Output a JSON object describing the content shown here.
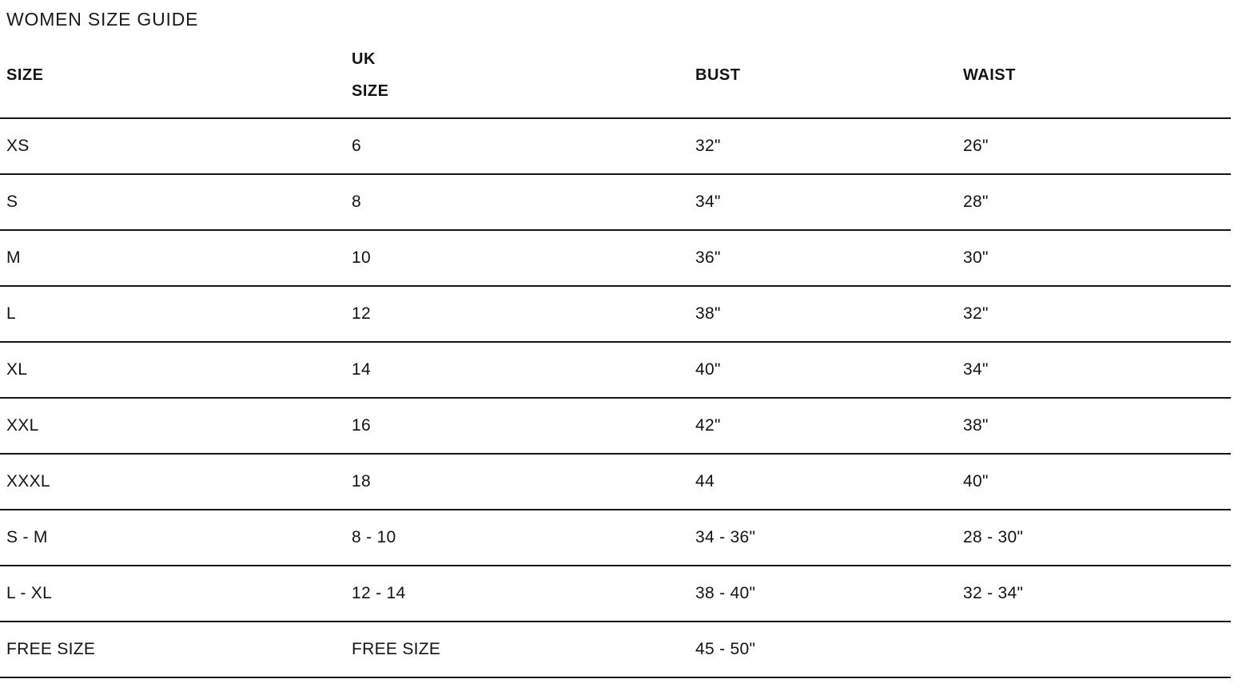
{
  "page": {
    "title": "WOMEN SIZE GUIDE"
  },
  "table": {
    "columns": [
      {
        "key": "size",
        "label": "SIZE"
      },
      {
        "key": "uk_size",
        "label": "UK SIZE"
      },
      {
        "key": "bust",
        "label": "BUST"
      },
      {
        "key": "waist",
        "label": "WAIST"
      }
    ],
    "rows": [
      {
        "size": "XS",
        "uk_size": "6",
        "bust": "32\"",
        "waist": "26\""
      },
      {
        "size": "S",
        "uk_size": "8",
        "bust": "34\"",
        "waist": "28\""
      },
      {
        "size": "M",
        "uk_size": "10",
        "bust": "36\"",
        "waist": "30\""
      },
      {
        "size": "L",
        "uk_size": "12",
        "bust": "38\"",
        "waist": "32\""
      },
      {
        "size": "XL",
        "uk_size": "14",
        "bust": "40\"",
        "waist": "34\""
      },
      {
        "size": "XXL",
        "uk_size": "16",
        "bust": "42\"",
        "waist": "38\""
      },
      {
        "size": "XXXL",
        "uk_size": "18",
        "bust": "44",
        "waist": "40\""
      },
      {
        "size": "S - M",
        "uk_size": "8 - 10",
        "bust": "34 - 36\"",
        "waist": "28 - 30\""
      },
      {
        "size": "L - XL",
        "uk_size": "12 - 14",
        "bust": "38 - 40\"",
        "waist": "32 - 34\""
      },
      {
        "size": "FREE SIZE",
        "uk_size": "FREE SIZE",
        "bust": "45 - 50\"",
        "waist": ""
      }
    ]
  },
  "colors": {
    "background": "#ffffff",
    "text": "#141414",
    "line": "#161616"
  }
}
